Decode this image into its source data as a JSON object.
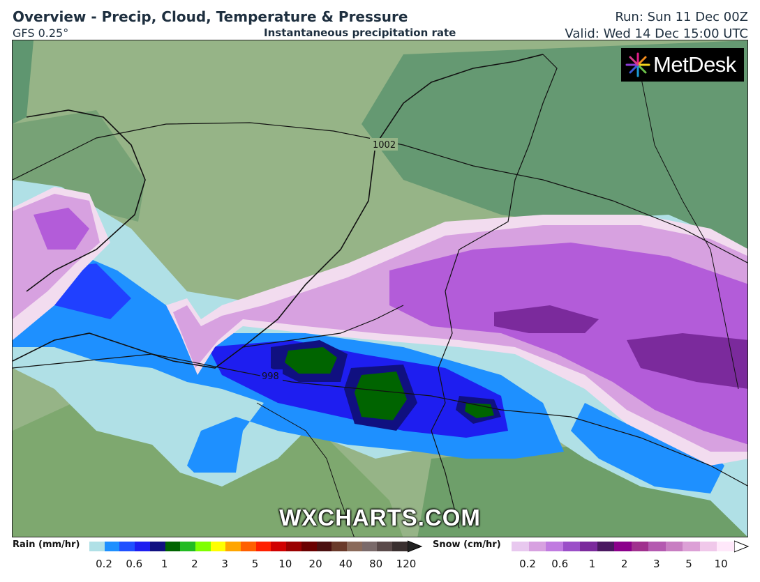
{
  "header": {
    "title": "Overview - Precip, Cloud, Temperature & Pressure",
    "model": "GFS 0.25°",
    "subtitle": "Instantaneous precipitation rate",
    "run": "Run: Sun 11 Dec 00Z",
    "valid": "Valid: Wed 14 Dec 15:00 UTC"
  },
  "map": {
    "isobar_labels": [
      "1002",
      "998"
    ],
    "colors": {
      "land_cloud": "#96b487",
      "land_dark": "#5f9670",
      "sea": "#9bb68a",
      "rain_light": "#b0e0e6",
      "rain_mod": "#1e90ff",
      "rain_heavy": "#1e1ef0",
      "rain_very_heavy": "#00007f",
      "rain_extreme": "#006400",
      "snow_light": "#f2dcef",
      "snow_mod": "#d7a1e0",
      "snow_heavy": "#b35cd9",
      "snow_very_heavy": "#7b2a9c"
    }
  },
  "logo": {
    "text": "MetDesk"
  },
  "watermark": "WXCHARTS.COM",
  "legend": {
    "rain": {
      "title": "Rain (mm/hr)",
      "colors": [
        "#b0e0e6",
        "#1e90ff",
        "#2050ff",
        "#1e1ef0",
        "#101080",
        "#006400",
        "#22bb22",
        "#7fff00",
        "#ffff00",
        "#ffa500",
        "#ff6000",
        "#ff2000",
        "#d00000",
        "#9a0000",
        "#6a0000",
        "#4b1010",
        "#6a3a2a",
        "#8a6a5a",
        "#7a6a6a",
        "#5a4a4a",
        "#3a3030"
      ],
      "ticks": [
        "0.2",
        "0.6",
        "1",
        "2",
        "3",
        "5",
        "10",
        "20",
        "40",
        "80",
        "120"
      ]
    },
    "snow": {
      "title": "Snow (cm/hr)",
      "colors": [
        "#e8c8ef",
        "#d7a1e0",
        "#c07be0",
        "#9b4fc8",
        "#7b2a9c",
        "#4a1860",
        "#8b008b",
        "#a0308e",
        "#b45ab0",
        "#c87ec2",
        "#dca0d6",
        "#f0c8ea",
        "#ffe8fa"
      ],
      "ticks": [
        "0.2",
        "0.6",
        "1",
        "2",
        "3",
        "5",
        "10"
      ]
    }
  }
}
